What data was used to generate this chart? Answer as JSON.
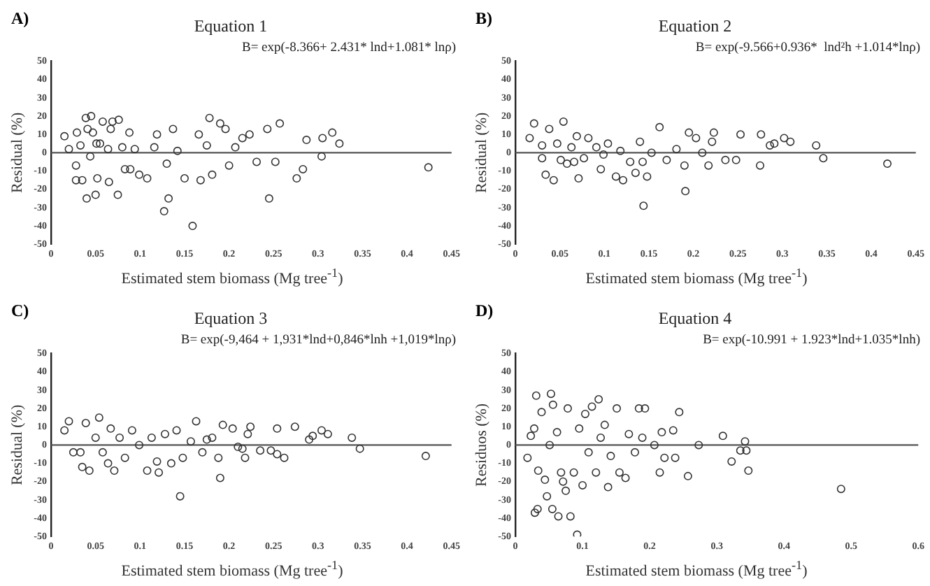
{
  "chart_data": [
    {
      "type": "scatter",
      "title": "Equation 1",
      "subtitle": "B= exp(-8.366+ 2.431* lnd+1.081* lnρ)",
      "xlabel": "Estimated stem biomass (Mg tree$^{-1}$)",
      "ylabel": "Residual (%)",
      "annotations": [
        "A)"
      ],
      "ref_lines": [
        {
          "axis": "y",
          "value": 0,
          "color": "#555555"
        }
      ],
      "color": "#333333",
      "marker": "circle",
      "grid": false,
      "legend": false,
      "xlim": [
        0,
        0.45
      ],
      "xticks": [
        0,
        0.05,
        0.1,
        0.15,
        0.2,
        0.25,
        0.3,
        0.35,
        0.4,
        0.45
      ],
      "ylim": [
        -50,
        50
      ],
      "yticks": [
        -50,
        -40,
        -30,
        -20,
        -10,
        0,
        10,
        20,
        30,
        40,
        50
      ],
      "x": [
        0.015,
        0.02,
        0.029,
        0.028,
        0.028,
        0.033,
        0.035,
        0.039,
        0.04,
        0.041,
        0.045,
        0.047,
        0.05,
        0.052,
        0.055,
        0.058,
        0.064,
        0.065,
        0.069,
        0.075,
        0.076,
        0.083,
        0.088,
        0.094,
        0.099,
        0.108,
        0.116,
        0.119,
        0.127,
        0.13,
        0.132,
        0.137,
        0.142,
        0.15,
        0.159,
        0.166,
        0.168,
        0.175,
        0.178,
        0.181,
        0.19,
        0.196,
        0.2,
        0.207,
        0.215,
        0.223,
        0.231,
        0.243,
        0.245,
        0.252,
        0.257,
        0.276,
        0.283,
        0.287,
        0.304,
        0.305,
        0.316,
        0.324,
        0.424,
        0.044,
        0.051,
        0.067,
        0.08,
        0.089
      ],
      "values": [
        9,
        2,
        11,
        -7,
        -15,
        4,
        -15,
        19,
        -25,
        13,
        20,
        11,
        -23,
        -14,
        5,
        17,
        2,
        -16,
        17,
        -23,
        18,
        -9,
        11,
        2,
        -12,
        -14,
        3,
        10,
        -32,
        -6,
        -25,
        13,
        1,
        -14,
        -40,
        10,
        -15,
        4,
        19,
        -12,
        16,
        13,
        -7,
        3,
        8,
        10,
        -5,
        13,
        -25,
        -5,
        16,
        -14,
        -9,
        7,
        -2,
        8,
        11,
        5,
        -8,
        -2,
        5,
        13,
        3,
        -9
      ]
    },
    {
      "type": "scatter",
      "title": "Equation 2",
      "subtitle": "B= exp(-9.566+0.936*  lnd²h +1.014*lnρ)",
      "xlabel": "Estimated stem biomass (Mg tree$^{-1}$)",
      "ylabel": "Residual (%)",
      "annotations": [
        "B)"
      ],
      "ref_lines": [
        {
          "axis": "y",
          "value": 0,
          "color": "#555555"
        }
      ],
      "color": "#333333",
      "marker": "circle",
      "grid": false,
      "legend": false,
      "xlim": [
        0,
        0.45
      ],
      "xticks": [
        0,
        0.05,
        0.1,
        0.15,
        0.2,
        0.25,
        0.3,
        0.35,
        0.4,
        0.45
      ],
      "ylim": [
        -50,
        50
      ],
      "yticks": [
        -50,
        -40,
        -30,
        -20,
        -10,
        0,
        10,
        20,
        30,
        40,
        50
      ],
      "x": [
        0.016,
        0.021,
        0.03,
        0.034,
        0.038,
        0.043,
        0.047,
        0.054,
        0.058,
        0.063,
        0.069,
        0.071,
        0.077,
        0.082,
        0.091,
        0.096,
        0.104,
        0.113,
        0.118,
        0.121,
        0.129,
        0.135,
        0.14,
        0.144,
        0.148,
        0.153,
        0.162,
        0.17,
        0.181,
        0.19,
        0.191,
        0.195,
        0.203,
        0.21,
        0.217,
        0.221,
        0.223,
        0.236,
        0.248,
        0.253,
        0.275,
        0.276,
        0.286,
        0.291,
        0.302,
        0.309,
        0.338,
        0.346,
        0.418,
        0.03,
        0.051,
        0.066,
        0.099,
        0.143
      ],
      "values": [
        8,
        16,
        -3,
        -12,
        13,
        -15,
        5,
        17,
        -6,
        3,
        9,
        -14,
        -3,
        8,
        3,
        -9,
        5,
        -13,
        1,
        -15,
        -5,
        -11,
        6,
        -29,
        -13,
        0,
        14,
        -4,
        2,
        -7,
        -21,
        11,
        8,
        0,
        -7,
        6,
        11,
        -4,
        -4,
        10,
        -7,
        10,
        4,
        5,
        8,
        6,
        4,
        -3,
        -6,
        4,
        -4,
        -5,
        -1,
        -5
      ]
    },
    {
      "type": "scatter",
      "title": "Equation 3",
      "subtitle": "B= exp(-9,464 + 1,931*lnd+0,846*lnh +1,019*lnρ)",
      "xlabel": "Estimated stem biomass (Mg tree$^{-1}$)",
      "ylabel": "Residual (%)",
      "annotations": [
        "C)"
      ],
      "ref_lines": [
        {
          "axis": "y",
          "value": 0,
          "color": "#555555"
        }
      ],
      "color": "#333333",
      "marker": "circle",
      "grid": false,
      "legend": false,
      "xlim": [
        0,
        0.45
      ],
      "xticks": [
        0,
        0.05,
        0.1,
        0.15,
        0.2,
        0.25,
        0.3,
        0.35,
        0.4,
        0.45
      ],
      "ylim": [
        -50,
        50
      ],
      "yticks": [
        -50,
        -40,
        -30,
        -20,
        -10,
        0,
        10,
        20,
        30,
        40,
        50
      ],
      "x": [
        0.015,
        0.02,
        0.025,
        0.033,
        0.035,
        0.039,
        0.043,
        0.05,
        0.054,
        0.058,
        0.064,
        0.067,
        0.071,
        0.077,
        0.083,
        0.091,
        0.099,
        0.108,
        0.113,
        0.119,
        0.121,
        0.128,
        0.135,
        0.141,
        0.145,
        0.148,
        0.157,
        0.163,
        0.17,
        0.175,
        0.181,
        0.188,
        0.19,
        0.193,
        0.204,
        0.21,
        0.215,
        0.218,
        0.221,
        0.224,
        0.235,
        0.247,
        0.254,
        0.254,
        0.262,
        0.274,
        0.29,
        0.294,
        0.304,
        0.311,
        0.338,
        0.347,
        0.421
      ],
      "values": [
        8,
        13,
        -4,
        -4,
        -12,
        12,
        -14,
        4,
        15,
        -4,
        -10,
        9,
        -14,
        4,
        -7,
        8,
        0,
        -14,
        4,
        -9,
        -15,
        6,
        -10,
        8,
        -28,
        -7,
        2,
        13,
        -4,
        3,
        4,
        -7,
        -18,
        11,
        9,
        -1,
        -2,
        -7,
        6,
        10,
        -3,
        -3,
        -5,
        9,
        -7,
        10,
        3,
        5,
        8,
        6,
        4,
        -2,
        -6
      ]
    },
    {
      "type": "scatter",
      "title": "Equation 4",
      "subtitle": "B= exp(-10.991 + 1.923*lnd+1.035*lnh)",
      "xlabel": "Estimated stem biomass (Mg tree$^{-1}$)",
      "ylabel": "Residuos (%)",
      "annotations": [
        "D)"
      ],
      "ref_lines": [
        {
          "axis": "y",
          "value": 0,
          "color": "#555555"
        }
      ],
      "color": "#333333",
      "marker": "circle",
      "grid": false,
      "legend": false,
      "xlim": [
        0,
        0.6
      ],
      "xticks": [
        0,
        0.1,
        0.2,
        0.3,
        0.4,
        0.5,
        0.6
      ],
      "ylim": [
        -50,
        50
      ],
      "yticks": [
        -50,
        -40,
        -30,
        -20,
        -10,
        0,
        10,
        20,
        30,
        40,
        50
      ],
      "x": [
        0.018,
        0.023,
        0.028,
        0.029,
        0.031,
        0.033,
        0.034,
        0.039,
        0.044,
        0.047,
        0.051,
        0.053,
        0.055,
        0.056,
        0.062,
        0.064,
        0.068,
        0.071,
        0.075,
        0.078,
        0.082,
        0.087,
        0.092,
        0.095,
        0.1,
        0.104,
        0.109,
        0.114,
        0.12,
        0.124,
        0.127,
        0.133,
        0.138,
        0.142,
        0.151,
        0.155,
        0.164,
        0.169,
        0.178,
        0.184,
        0.189,
        0.193,
        0.207,
        0.215,
        0.218,
        0.222,
        0.235,
        0.238,
        0.244,
        0.257,
        0.273,
        0.309,
        0.322,
        0.335,
        0.342,
        0.344,
        0.347,
        0.485
      ],
      "values": [
        -7,
        5,
        9,
        -37,
        27,
        -35,
        -14,
        18,
        -19,
        -28,
        0,
        28,
        -35,
        22,
        7,
        -39,
        -15,
        -20,
        -25,
        20,
        -39,
        -15,
        -49,
        9,
        -22,
        17,
        -4,
        21,
        -15,
        25,
        4,
        11,
        -23,
        -6,
        20,
        -15,
        -18,
        6,
        -4,
        20,
        4,
        20,
        0,
        -15,
        7,
        -7,
        8,
        -7,
        18,
        -17,
        0,
        5,
        -9,
        -3,
        2,
        -3,
        -14,
        -24
      ]
    }
  ]
}
